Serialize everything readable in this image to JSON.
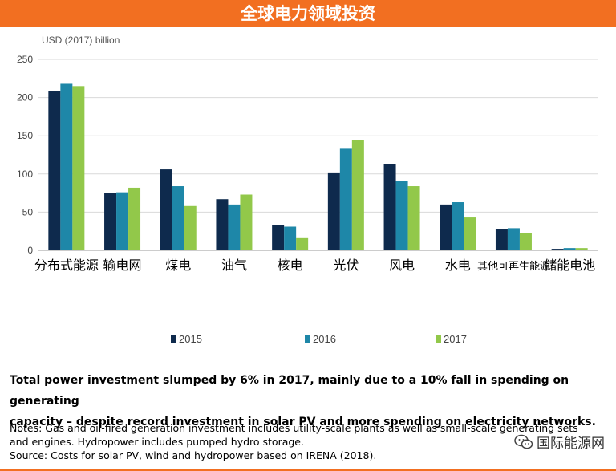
{
  "banner": {
    "title": "全球电力领域投资"
  },
  "chart_data": {
    "type": "bar",
    "title": "全球电力领域投资",
    "unit_label": "USD (2017) billion",
    "categories": [
      "分布式能源",
      "输电网",
      "煤电",
      "油气",
      "核电",
      "光伏",
      "风电",
      "水电",
      "其他可再生能源",
      "储能电池"
    ],
    "series": [
      {
        "name": "2015",
        "color": "#0e2a4d",
        "values": [
          209,
          75,
          106,
          67,
          33,
          102,
          113,
          60,
          28,
          2
        ]
      },
      {
        "name": "2016",
        "color": "#1e87a8",
        "values": [
          218,
          76,
          84,
          60,
          31,
          133,
          91,
          63,
          29,
          3
        ]
      },
      {
        "name": "2017",
        "color": "#92c84a",
        "values": [
          215,
          82,
          58,
          73,
          17,
          144,
          84,
          43,
          23,
          3
        ]
      }
    ],
    "ylim": [
      0,
      250
    ],
    "yticks": [
      0,
      50,
      100,
      150,
      200,
      250
    ],
    "grid": true,
    "legend_position": "bottom-center"
  },
  "headline": {
    "line1": "Total power investment slumped by 6% in 2017, mainly due to a 10% fall in spending on generating",
    "line2": "capacity – despite record investment in solar PV and more spending on electricity networks."
  },
  "notes": {
    "line1": "Notes: Gas and oil-fired generation investment includes utility-scale plants as well as small-scale generating sets",
    "line2": "and engines. Hydropower includes pumped hydro storage.",
    "line3": "Source: Costs for solar PV, wind and hydropower based on IRENA (2018)."
  },
  "watermark": {
    "text": "国际能源网",
    "icon": "wechat-icon"
  }
}
